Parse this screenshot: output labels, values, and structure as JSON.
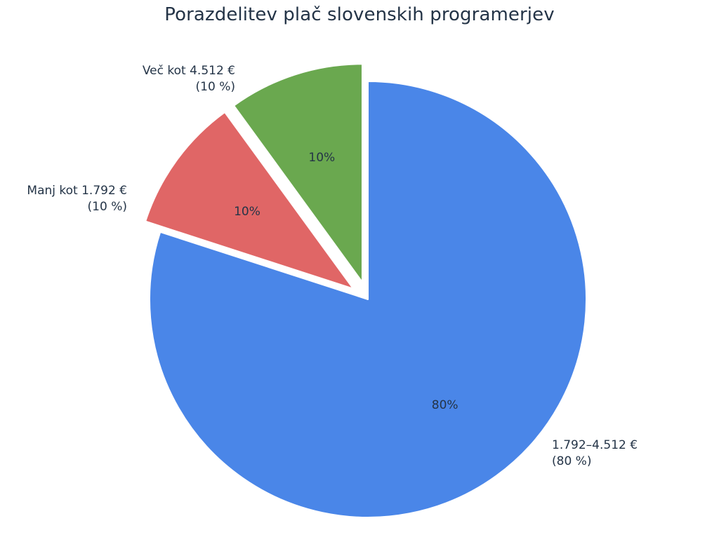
{
  "chart_data": {
    "type": "pie",
    "title": "Porazdelitev plač slovenskih programerjev",
    "slices": [
      {
        "category": "1.792–4.512 €",
        "value": 80,
        "pct_label": "80%",
        "outer_label_line1": "1.792–4.512 €",
        "outer_label_line2": "(80 %)",
        "color": "#4A86E8",
        "exploded": false
      },
      {
        "category": "Manj kot 1.792 €",
        "value": 10,
        "pct_label": "10%",
        "outer_label_line1": "Manj kot 1.792 €",
        "outer_label_line2": "(10 %)",
        "color": "#E06666",
        "exploded": true
      },
      {
        "category": "Več kot 4.512 €",
        "value": 10,
        "pct_label": "10%",
        "outer_label_line1": "Več kot 4.512 €",
        "outer_label_line2": "(10 %)",
        "color": "#6AA84F",
        "exploded": true
      }
    ],
    "legend": "none"
  }
}
